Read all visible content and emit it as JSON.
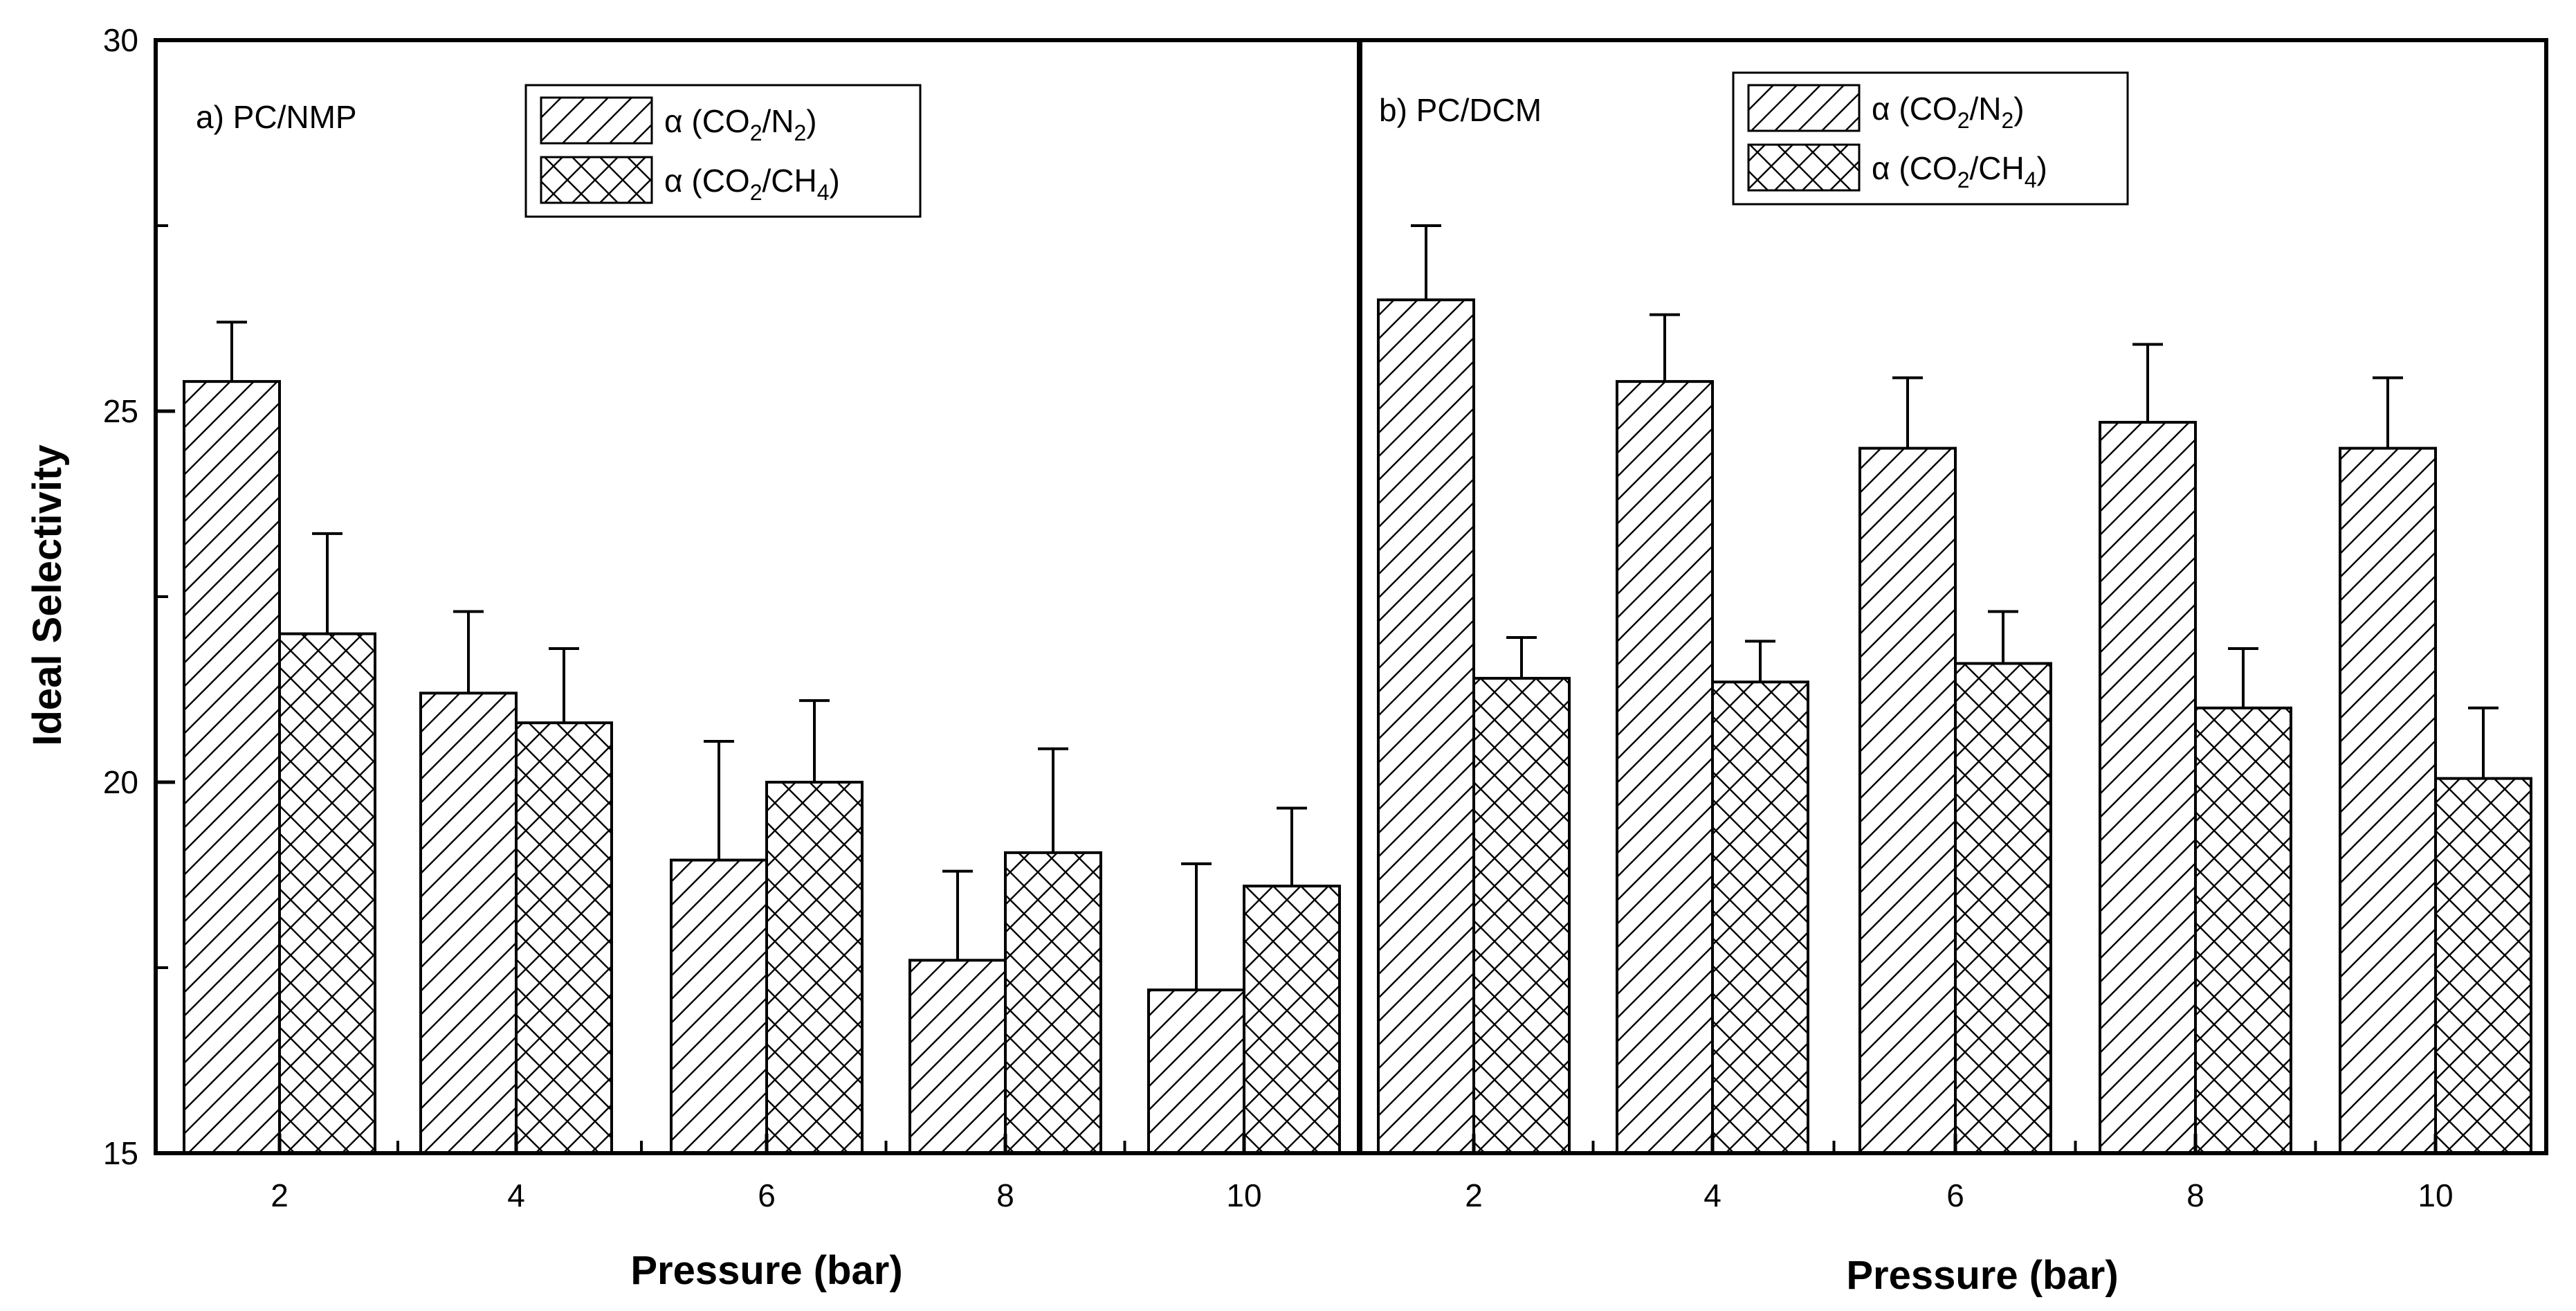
{
  "chart_data": {
    "type": "bar",
    "ylabel": "Ideal Selectivity",
    "ylim": [
      15,
      30
    ],
    "yticks": [
      15,
      20,
      25,
      30
    ],
    "error_bars": true,
    "panels": [
      {
        "title": "a) PC/NMP",
        "xlabel": "Pressure (bar)",
        "categories": [
          "2",
          "4",
          "6",
          "8",
          "10"
        ],
        "legend_position": "top-center",
        "series": [
          {
            "name": "α (CO2/N2)",
            "label_main": "α (CO",
            "label_sub1": "2",
            "label_mid": "/N",
            "label_sub2": "2",
            "label_end": ")",
            "pattern": "diagonal-hatch",
            "values": [
              25.4,
              21.2,
              18.95,
              17.6,
              17.2
            ],
            "errors": [
              0.8,
              1.1,
              1.6,
              1.2,
              1.7
            ]
          },
          {
            "name": "α (CO2/CH4)",
            "label_main": "α (CO",
            "label_sub1": "2",
            "label_mid": "/CH",
            "label_sub2": "4",
            "label_end": ")",
            "pattern": "cross-hatch",
            "values": [
              22.0,
              20.8,
              20.0,
              19.05,
              18.6
            ],
            "errors": [
              1.35,
              1.0,
              1.1,
              1.4,
              1.05
            ]
          }
        ]
      },
      {
        "title": "b) PC/DCM",
        "xlabel": "Pressure (bar)",
        "categories": [
          "2",
          "4",
          "6",
          "8",
          "10"
        ],
        "legend_position": "top-center",
        "series": [
          {
            "name": "α (CO2/N2)",
            "label_main": "α (CO",
            "label_sub1": "2",
            "label_mid": "/N",
            "label_sub2": "2",
            "label_end": ")",
            "pattern": "diagonal-hatch",
            "values": [
              26.5,
              25.4,
              24.5,
              24.85,
              24.5
            ],
            "errors": [
              1.0,
              0.9,
              0.95,
              1.05,
              0.95
            ]
          },
          {
            "name": "α (CO2/CH4)",
            "label_main": "α (CO",
            "label_sub1": "2",
            "label_mid": "/CH",
            "label_sub2": "4",
            "label_end": ")",
            "pattern": "cross-hatch",
            "values": [
              21.4,
              21.35,
              21.6,
              21.0,
              20.05
            ],
            "errors": [
              0.55,
              0.55,
              0.7,
              0.8,
              0.95
            ]
          }
        ]
      }
    ]
  }
}
